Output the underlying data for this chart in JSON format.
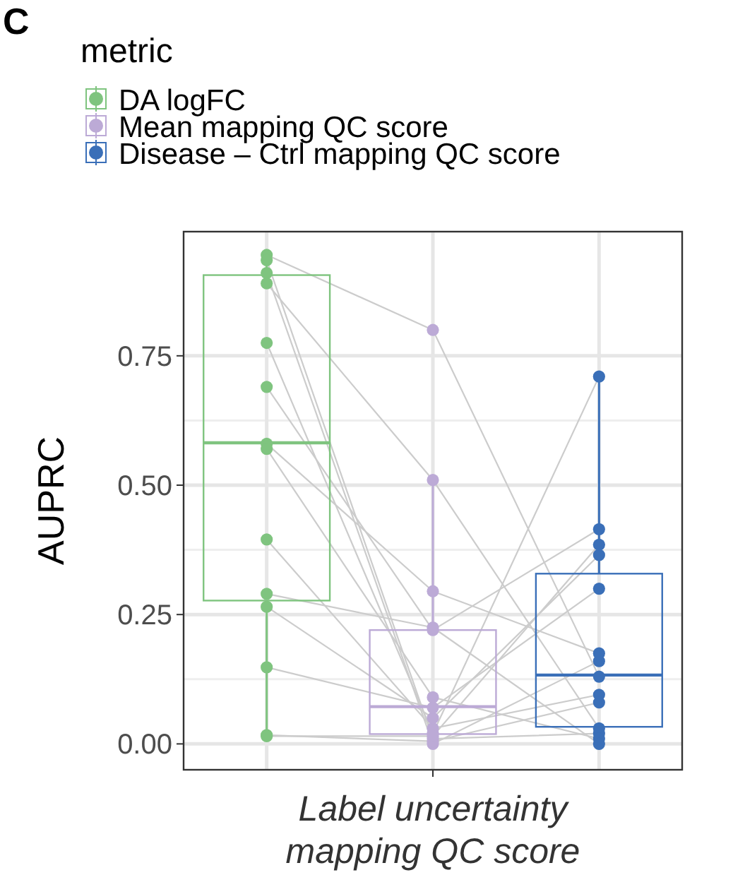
{
  "chart_data": {
    "type": "box",
    "ylabel": "AUPRC",
    "xlabel": "Label uncertainty\nmapping QC score",
    "legend_title": "metric",
    "legend": "top",
    "grid": true,
    "annotations": [
      "C"
    ],
    "categories": [
      null,
      null,
      null
    ],
    "ylim": [
      -0.05,
      0.99
    ],
    "yticks": [
      {
        "value": 0,
        "label": "0.00"
      },
      {
        "value": 0.25,
        "label": "0.25"
      },
      {
        "value": 0.5,
        "label": "0.50"
      },
      {
        "value": 0.75,
        "label": "0.75"
      }
    ],
    "series": [
      {
        "name": "DA logFC",
        "color": "#7fc47f",
        "boxes": [
          {
            "low": 0.015,
            "q1": 0.277,
            "median": 0.582,
            "q3": 0.906,
            "high": 0.945
          },
          null,
          null
        ]
      },
      {
        "name": "Mean mapping QC score",
        "color": "#bcaad6",
        "boxes": [
          null,
          {
            "low": 0.0,
            "q1": 0.019,
            "median": 0.072,
            "q3": 0.22,
            "high": 0.511
          },
          null
        ]
      },
      {
        "name": "Disease – Ctrl mapping QC score",
        "color": "#3a6fb8",
        "boxes": [
          null,
          null,
          {
            "low": 0.0,
            "q1": 0.033,
            "median": 0.133,
            "q3": 0.329,
            "high": 0.71
          }
        ]
      },
      {
        "type": "line",
        "marker": "circle",
        "color": "#cccccc",
        "colors": [
          "#7fc47f",
          "#bcaad6",
          "#3a6fb8"
        ],
        "values": [
          0.945,
          0.8,
          0.13
        ]
      },
      {
        "type": "line",
        "marker": "circle",
        "color": "#cccccc",
        "colors": [
          "#7fc47f",
          "#bcaad6",
          "#3a6fb8"
        ],
        "values": [
          0.935,
          0.01,
          0.02
        ]
      },
      {
        "type": "line",
        "marker": "circle",
        "color": "#cccccc",
        "colors": [
          "#7fc47f",
          "#bcaad6",
          "#3a6fb8"
        ],
        "values": [
          0.91,
          0.0,
          0.16
        ]
      },
      {
        "type": "line",
        "marker": "circle",
        "color": "#cccccc",
        "colors": [
          "#7fc47f",
          "#bcaad6",
          "#3a6fb8"
        ],
        "values": [
          0.89,
          0.51,
          0.03
        ]
      },
      {
        "type": "line",
        "marker": "circle",
        "color": "#cccccc",
        "colors": [
          "#7fc47f",
          "#bcaad6",
          "#3a6fb8"
        ],
        "values": [
          0.775,
          0.02,
          0.71
        ]
      },
      {
        "type": "line",
        "marker": "circle",
        "color": "#cccccc",
        "colors": [
          "#7fc47f",
          "#bcaad6",
          "#3a6fb8"
        ],
        "values": [
          0.69,
          0.22,
          0.415
        ]
      },
      {
        "type": "line",
        "marker": "circle",
        "color": "#cccccc",
        "colors": [
          "#7fc47f",
          "#bcaad6",
          "#3a6fb8"
        ],
        "values": [
          0.58,
          0.295,
          0.175
        ]
      },
      {
        "type": "line",
        "marker": "circle",
        "color": "#cccccc",
        "colors": [
          "#7fc47f",
          "#bcaad6",
          "#3a6fb8"
        ],
        "values": [
          0.57,
          0.09,
          0.01
        ]
      },
      {
        "type": "line",
        "marker": "circle",
        "color": "#cccccc",
        "colors": [
          "#7fc47f",
          "#bcaad6",
          "#3a6fb8"
        ],
        "values": [
          0.395,
          0.03,
          0.095
        ]
      },
      {
        "type": "line",
        "marker": "circle",
        "color": "#cccccc",
        "colors": [
          "#7fc47f",
          "#bcaad6",
          "#3a6fb8"
        ],
        "values": [
          0.29,
          0.225,
          0.0
        ]
      },
      {
        "type": "line",
        "marker": "circle",
        "color": "#cccccc",
        "colors": [
          "#7fc47f",
          "#bcaad6",
          "#3a6fb8"
        ],
        "values": [
          0.265,
          0.05,
          0.365
        ]
      },
      {
        "type": "line",
        "marker": "circle",
        "color": "#cccccc",
        "colors": [
          "#7fc47f",
          "#bcaad6",
          "#3a6fb8"
        ],
        "values": [
          0.148,
          0.07,
          0.3
        ]
      },
      {
        "type": "line",
        "marker": "circle",
        "color": "#cccccc",
        "colors": [
          "#7fc47f",
          "#bcaad6",
          "#3a6fb8"
        ],
        "values": [
          0.017,
          0.005,
          0.08
        ]
      },
      {
        "type": "line",
        "marker": "circle",
        "color": "#cccccc",
        "colors": [
          "#7fc47f",
          "#bcaad6",
          "#3a6fb8"
        ],
        "values": [
          0.015,
          0.015,
          0.385
        ]
      }
    ]
  }
}
